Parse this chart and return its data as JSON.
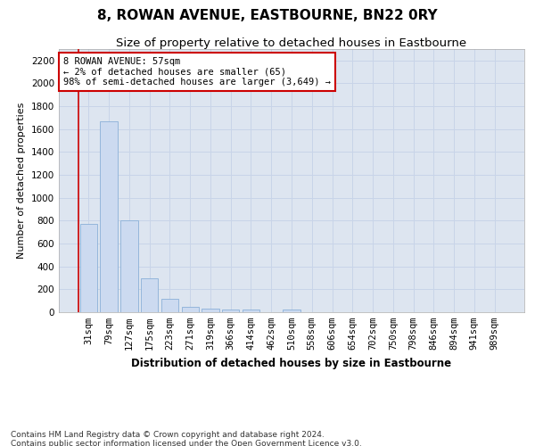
{
  "title": "8, ROWAN AVENUE, EASTBOURNE, BN22 0RY",
  "subtitle": "Size of property relative to detached houses in Eastbourne",
  "xlabel": "Distribution of detached houses by size in Eastbourne",
  "ylabel": "Number of detached properties",
  "categories": [
    "31sqm",
    "79sqm",
    "127sqm",
    "175sqm",
    "223sqm",
    "271sqm",
    "319sqm",
    "366sqm",
    "414sqm",
    "462sqm",
    "510sqm",
    "558sqm",
    "606sqm",
    "654sqm",
    "702sqm",
    "750sqm",
    "798sqm",
    "846sqm",
    "894sqm",
    "941sqm",
    "989sqm"
  ],
  "values": [
    770,
    1670,
    800,
    295,
    115,
    45,
    30,
    20,
    20,
    0,
    25,
    0,
    0,
    0,
    0,
    0,
    0,
    0,
    0,
    0,
    0
  ],
  "bar_color": "#ccdaf0",
  "bar_edge_color": "#8ab0d8",
  "annotation_box_text": "8 ROWAN AVENUE: 57sqm\n← 2% of detached houses are smaller (65)\n98% of semi-detached houses are larger (3,649) →",
  "annotation_box_color": "#ffffff",
  "annotation_box_edgecolor": "#cc0000",
  "red_line_x": -0.5,
  "ylim": [
    0,
    2300
  ],
  "yticks": [
    0,
    200,
    400,
    600,
    800,
    1000,
    1200,
    1400,
    1600,
    1800,
    2000,
    2200
  ],
  "grid_color": "#c8d4e8",
  "background_color": "#dde5f0",
  "footer_line1": "Contains HM Land Registry data © Crown copyright and database right 2024.",
  "footer_line2": "Contains public sector information licensed under the Open Government Licence v3.0.",
  "title_fontsize": 11,
  "subtitle_fontsize": 9.5,
  "xlabel_fontsize": 8.5,
  "ylabel_fontsize": 8,
  "tick_fontsize": 7.5,
  "annotation_fontsize": 7.5,
  "footer_fontsize": 6.5
}
